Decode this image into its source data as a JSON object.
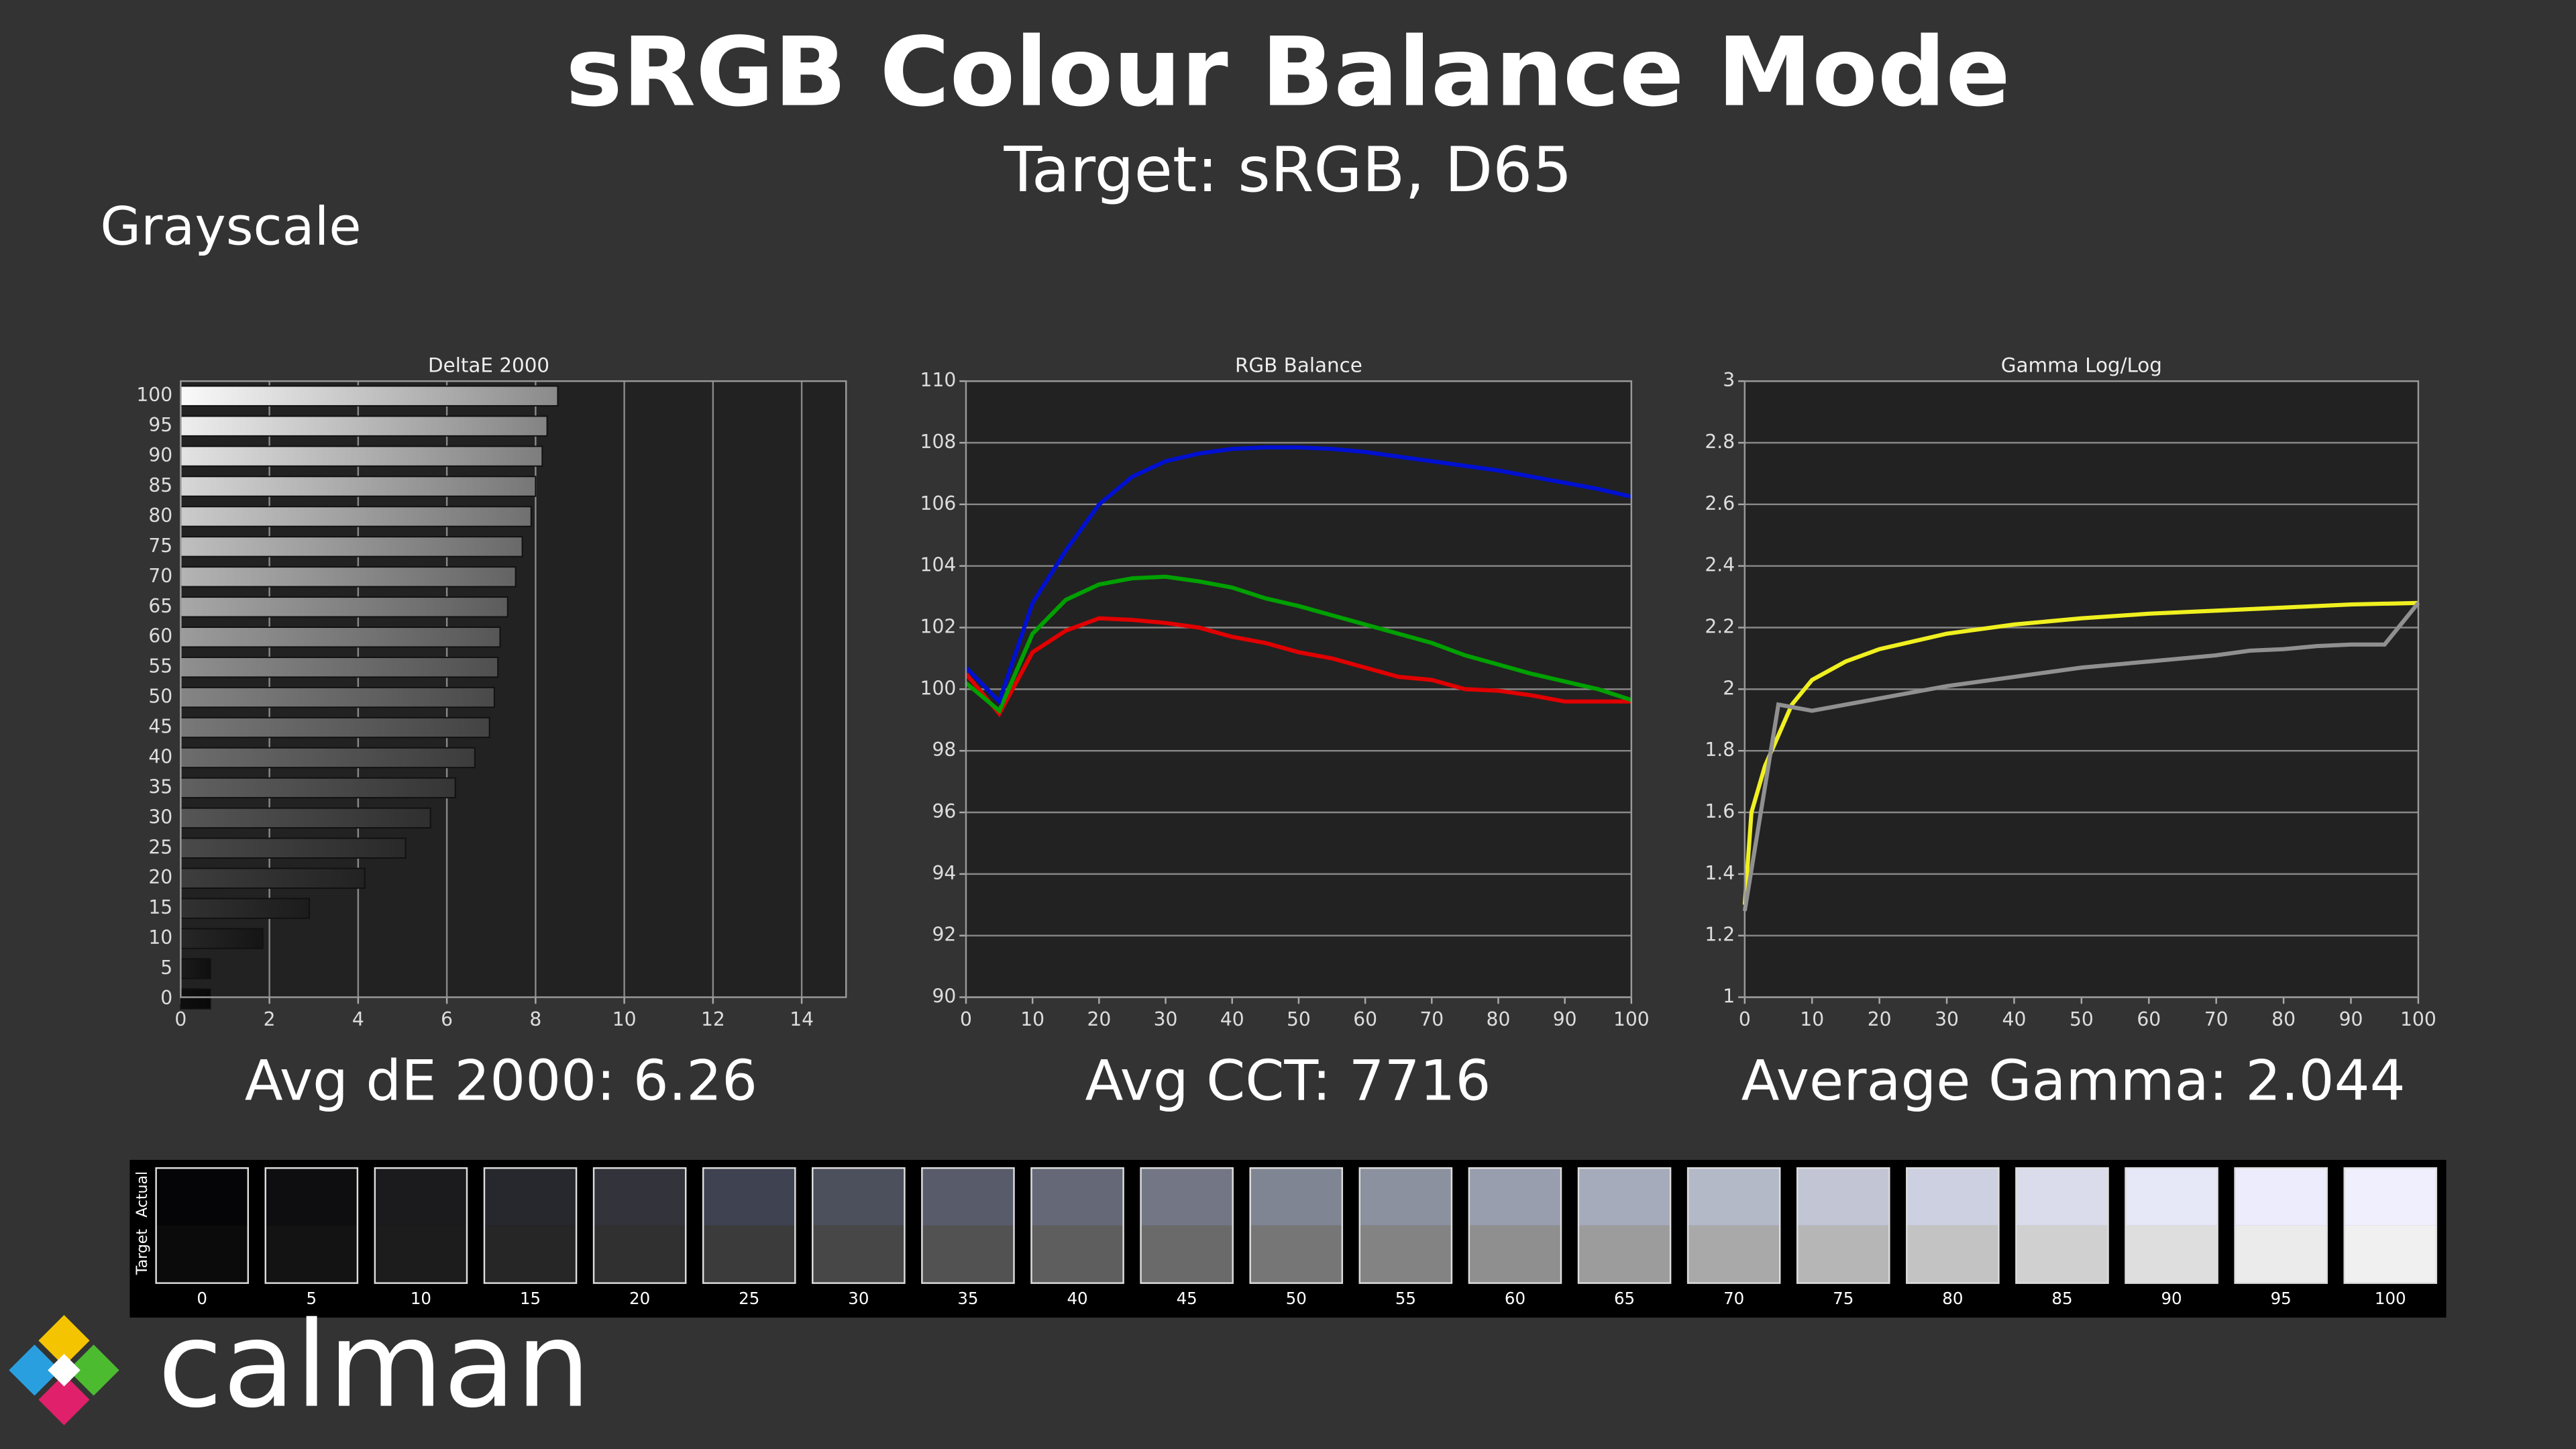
{
  "title": "sRGB Colour Balance Mode",
  "subtitle": "Target: sRGB, D65",
  "section": "Grayscale",
  "summaries": [
    "Avg dE 2000: 6.26",
    "Avg CCT: 7716",
    "Average Gamma: 2.044"
  ],
  "chart_data": [
    {
      "type": "hbar",
      "title": "DeltaE 2000",
      "categories": [
        "100",
        "95",
        "90",
        "85",
        "80",
        "75",
        "70",
        "65",
        "60",
        "55",
        "50",
        "45",
        "40",
        "35",
        "30",
        "25",
        "20",
        "15",
        "10",
        "5",
        "0"
      ],
      "values": [
        8.5,
        8.26,
        8.15,
        8.0,
        7.9,
        7.7,
        7.55,
        7.37,
        7.2,
        7.15,
        7.07,
        6.96,
        6.63,
        6.19,
        5.63,
        5.07,
        4.15,
        2.9,
        1.85,
        0.67,
        0.67
      ],
      "xlim": [
        0,
        15
      ],
      "xticks": [
        0,
        2,
        4,
        6,
        8,
        10,
        12,
        14
      ],
      "grid": true
    },
    {
      "type": "line",
      "title": "RGB Balance",
      "x": [
        0,
        5,
        10,
        15,
        20,
        25,
        30,
        35,
        40,
        45,
        50,
        55,
        60,
        65,
        70,
        75,
        80,
        85,
        90,
        95,
        100
      ],
      "xlim": [
        0,
        100
      ],
      "xticks": [
        0,
        10,
        20,
        30,
        40,
        50,
        60,
        70,
        80,
        90,
        100
      ],
      "ylim": [
        90,
        110
      ],
      "yticks": [
        90,
        92,
        94,
        96,
        98,
        100,
        102,
        104,
        106,
        108,
        110
      ],
      "grid": true,
      "series": [
        {
          "name": "Red",
          "color": "#e00000",
          "values": [
            100.5,
            99.2,
            101.2,
            101.9,
            102.3,
            102.25,
            102.15,
            102,
            101.7,
            101.5,
            101.2,
            101,
            100.7,
            100.4,
            100.3,
            100,
            99.95,
            99.8,
            99.6,
            99.6,
            99.6
          ]
        },
        {
          "name": "Green",
          "color": "#00a000",
          "values": [
            100.2,
            99.3,
            101.8,
            102.9,
            103.4,
            103.6,
            103.65,
            103.5,
            103.3,
            102.95,
            102.7,
            102.4,
            102.1,
            101.8,
            101.5,
            101.1,
            100.8,
            100.5,
            100.25,
            100,
            99.65
          ]
        },
        {
          "name": "Blue",
          "color": "#0010d0",
          "values": [
            100.7,
            99.6,
            102.8,
            104.5,
            106,
            106.9,
            107.4,
            107.65,
            107.8,
            107.85,
            107.85,
            107.8,
            107.7,
            107.55,
            107.4,
            107.25,
            107.1,
            106.9,
            106.7,
            106.5,
            106.25
          ]
        }
      ]
    },
    {
      "type": "line",
      "title": "Gamma Log/Log",
      "xlim": [
        0,
        100
      ],
      "xticks": [
        0,
        10,
        20,
        30,
        40,
        50,
        60,
        70,
        80,
        90,
        100
      ],
      "ylim": [
        1,
        3
      ],
      "yticks": [
        1,
        1.2,
        1.4,
        1.6,
        1.8,
        2,
        2.2,
        2.4,
        2.6,
        2.8,
        3
      ],
      "grid": true,
      "series": [
        {
          "name": "Target",
          "color": "#f0f020",
          "x": [
            0,
            1,
            3,
            5,
            7,
            10,
            15,
            20,
            30,
            40,
            50,
            60,
            70,
            80,
            90,
            100
          ],
          "values": [
            1.3,
            1.6,
            1.75,
            1.85,
            1.95,
            2.03,
            2.09,
            2.13,
            2.18,
            2.21,
            2.23,
            2.245,
            2.255,
            2.265,
            2.275,
            2.28
          ]
        },
        {
          "name": "Actual",
          "color": "#909090",
          "x": [
            0,
            5,
            10,
            20,
            30,
            40,
            50,
            60,
            70,
            75,
            80,
            85,
            90,
            95,
            100
          ],
          "values": [
            1.28,
            1.95,
            1.93,
            1.97,
            2.01,
            2.04,
            2.07,
            2.09,
            2.11,
            2.125,
            2.13,
            2.14,
            2.145,
            2.145,
            2.28
          ]
        }
      ]
    }
  ],
  "swatches": {
    "rows": [
      "Actual",
      "Target"
    ],
    "items": [
      {
        "label": "0",
        "actual": "#050507",
        "target": "#0b0b0b"
      },
      {
        "label": "5",
        "actual": "#0e0e10",
        "target": "#131313"
      },
      {
        "label": "10",
        "actual": "#1b1b1e",
        "target": "#1c1c1c"
      },
      {
        "label": "15",
        "actual": "#27282d",
        "target": "#262626"
      },
      {
        "label": "20",
        "actual": "#32333b",
        "target": "#303030"
      },
      {
        "label": "25",
        "actual": "#3f4250",
        "target": "#3b3b3b"
      },
      {
        "label": "30",
        "actual": "#4c4f5c",
        "target": "#474747"
      },
      {
        "label": "35",
        "actual": "#585b6a",
        "target": "#525252"
      },
      {
        "label": "40",
        "actual": "#656977",
        "target": "#5e5e5e"
      },
      {
        "label": "45",
        "actual": "#737785",
        "target": "#6a6a6a"
      },
      {
        "label": "50",
        "actual": "#808593",
        "target": "#767676"
      },
      {
        "label": "55",
        "actual": "#8c91a0",
        "target": "#838383"
      },
      {
        "label": "60",
        "actual": "#999eae",
        "target": "#8f8f8f"
      },
      {
        "label": "65",
        "actual": "#a6abbb",
        "target": "#9c9c9c"
      },
      {
        "label": "70",
        "actual": "#b4b9c8",
        "target": "#a9a9a9"
      },
      {
        "label": "75",
        "actual": "#c1c5d4",
        "target": "#b6b6b6"
      },
      {
        "label": "80",
        "actual": "#cdd0e0",
        "target": "#c3c3c3"
      },
      {
        "label": "85",
        "actual": "#dadcec",
        "target": "#d0d0d0"
      },
      {
        "label": "90",
        "actual": "#e6e8f8",
        "target": "#dedede"
      },
      {
        "label": "95",
        "actual": "#ececfc",
        "target": "#ebebeb"
      },
      {
        "label": "100",
        "actual": "#efeffd",
        "target": "#f0f0f0"
      }
    ]
  },
  "logo": {
    "text": "calman"
  }
}
